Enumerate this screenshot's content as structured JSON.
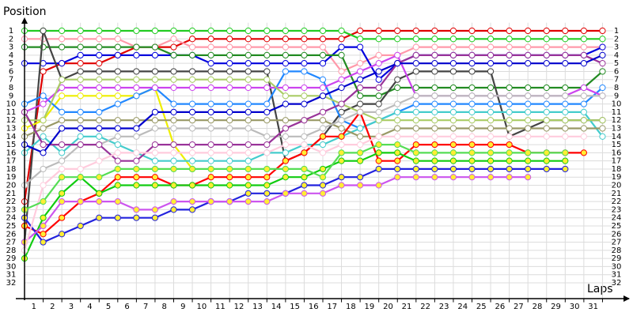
{
  "chart_data": {
    "type": "line",
    "y_label": "Position",
    "x_label": "Laps",
    "x": [
      0,
      1,
      2,
      3,
      4,
      5,
      6,
      7,
      8,
      9,
      10,
      11,
      12,
      13,
      14,
      15,
      16,
      17,
      18,
      19,
      20,
      21,
      22,
      23,
      24,
      25,
      26,
      27,
      28,
      29,
      30,
      31
    ],
    "xlim": [
      0,
      32
    ],
    "ylim": [
      0,
      34
    ],
    "y_inverted": true,
    "grid": true,
    "xticks": [
      1,
      2,
      3,
      4,
      5,
      6,
      7,
      8,
      9,
      10,
      11,
      12,
      13,
      14,
      15,
      16,
      17,
      18,
      19,
      20,
      21,
      22,
      23,
      24,
      25,
      26,
      27,
      28,
      29,
      30,
      31
    ],
    "yticks": [
      1,
      2,
      3,
      4,
      5,
      6,
      7,
      8,
      9,
      10,
      11,
      12,
      13,
      14,
      15,
      16,
      17,
      18,
      19,
      20,
      21,
      22,
      23,
      24,
      25,
      26,
      27,
      28,
      29,
      30,
      31,
      32
    ],
    "series": [
      {
        "color": "#e00000",
        "marker_color": "#ffffff",
        "values": [
          22,
          6,
          5,
          5,
          5,
          4,
          3,
          3,
          3,
          2,
          2,
          2,
          2,
          2,
          2,
          2,
          2,
          2,
          1,
          1,
          1,
          1,
          1,
          1,
          1,
          1,
          1,
          1,
          1,
          1,
          1,
          1
        ]
      },
      {
        "color": "#22cc22",
        "marker_color": "#ffffff",
        "values": [
          1,
          1,
          1,
          1,
          1,
          1,
          1,
          1,
          1,
          1,
          1,
          1,
          1,
          1,
          1,
          1,
          1,
          1,
          2,
          2,
          2,
          2,
          2,
          2,
          2,
          2,
          2,
          2,
          2,
          2,
          2,
          2
        ]
      },
      {
        "color": "#ff99aa",
        "marker_color": "#ffffff",
        "values": [
          2,
          2,
          2,
          2,
          2,
          2,
          3,
          3,
          2,
          3,
          3,
          3,
          3,
          3,
          3,
          3,
          3,
          6,
          5,
          4,
          4,
          3,
          3,
          3,
          3,
          3,
          3,
          3,
          3,
          3,
          3,
          3
        ]
      },
      {
        "color": "#0000dd",
        "marker_color": "#ffffff",
        "values": [
          5,
          5,
          5,
          4,
          4,
          4,
          4,
          4,
          4,
          4,
          5,
          5,
          5,
          5,
          5,
          5,
          5,
          3,
          3,
          7,
          5,
          4,
          4,
          4,
          4,
          4,
          4,
          4,
          4,
          4,
          4,
          3
        ]
      },
      {
        "color": "#228b22",
        "marker_color": "#ffffff",
        "values": [
          3,
          3,
          3,
          3,
          3,
          3,
          3,
          3,
          4,
          4,
          4,
          4,
          4,
          4,
          4,
          4,
          4,
          4,
          9,
          9,
          8,
          8,
          8,
          8,
          8,
          8,
          8,
          8,
          8,
          8,
          8,
          6
        ]
      },
      {
        "color": "#444444",
        "marker_color": "#ffffff",
        "values": [
          27,
          1,
          7,
          6,
          6,
          6,
          6,
          6,
          6,
          6,
          6,
          6,
          6,
          6,
          17,
          16,
          14,
          11,
          10,
          10,
          7,
          6,
          6,
          6,
          6,
          6,
          14,
          13,
          12,
          12,
          12,
          12
        ]
      },
      {
        "color": "#eeee00",
        "marker_color": "#ffffff",
        "values": [
          13,
          12,
          9,
          9,
          9,
          9,
          9,
          8,
          15,
          18,
          null,
          null,
          null,
          null,
          null,
          null,
          null,
          null,
          null,
          null,
          null,
          null,
          null,
          null,
          null,
          null,
          null,
          null,
          null,
          null,
          null,
          null
        ]
      },
      {
        "color": "#2288ff",
        "marker_color": "#ffffff",
        "values": [
          10,
          9,
          11,
          11,
          11,
          10,
          9,
          8,
          10,
          10,
          10,
          10,
          10,
          10,
          6,
          6,
          7,
          12,
          13,
          12,
          11,
          10,
          10,
          10,
          10,
          10,
          10,
          10,
          10,
          10,
          10,
          8
        ]
      },
      {
        "color": "#cc44ee",
        "marker_color": "#ffffff",
        "values": [
          11,
          10,
          8,
          8,
          8,
          8,
          8,
          8,
          8,
          8,
          8,
          8,
          8,
          8,
          8,
          8,
          8,
          7,
          6,
          5,
          4,
          9,
          9,
          9,
          9,
          9,
          9,
          9,
          9,
          9,
          8,
          9
        ]
      },
      {
        "color": "#44cccc",
        "marker_color": "#ffffff",
        "values": [
          16,
          14,
          16,
          14,
          14,
          15,
          16,
          17,
          17,
          17,
          17,
          17,
          17,
          16,
          16,
          15,
          15,
          14,
          13,
          12,
          11,
          11,
          11,
          11,
          11,
          11,
          11,
          11,
          11,
          11,
          11,
          14
        ]
      },
      {
        "color": "#aacc66",
        "marker_color": "#ffffff",
        "values": [
          12,
          12,
          7,
          7,
          7,
          7,
          7,
          7,
          7,
          7,
          7,
          7,
          7,
          7,
          9,
          9,
          9,
          10,
          11,
          12,
          12,
          12,
          12,
          12,
          12,
          12,
          12,
          12,
          12,
          12,
          12,
          12
        ]
      },
      {
        "color": "#999966",
        "marker_color": "#ffffff",
        "values": [
          14,
          13,
          12,
          12,
          12,
          12,
          12,
          12,
          12,
          12,
          12,
          12,
          12,
          12,
          12,
          12,
          12,
          13,
          14,
          14,
          13,
          13,
          13,
          13,
          13,
          13,
          13,
          13,
          13,
          13,
          13,
          13
        ]
      },
      {
        "color": "#ff0000",
        "marker_color": "#ffee33",
        "values": [
          25,
          26,
          24,
          22,
          21,
          19,
          19,
          19,
          20,
          20,
          19,
          19,
          19,
          19,
          17,
          16,
          14,
          14,
          11,
          17,
          17,
          15,
          15,
          15,
          15,
          15,
          15,
          16,
          16,
          16,
          16,
          null
        ]
      },
      {
        "color": "#11cc11",
        "marker_color": "#ffee33",
        "values": [
          29,
          24,
          21,
          19,
          21,
          20,
          20,
          20,
          20,
          20,
          20,
          20,
          20,
          20,
          19,
          19,
          18,
          17,
          17,
          16,
          16,
          17,
          17,
          17,
          17,
          17,
          17,
          17,
          17,
          17,
          null,
          null
        ]
      },
      {
        "color": "#2222dd",
        "marker_color": "#ffee33",
        "values": [
          24,
          27,
          26,
          25,
          24,
          24,
          24,
          24,
          23,
          23,
          22,
          22,
          21,
          21,
          21,
          20,
          20,
          19,
          19,
          18,
          18,
          18,
          18,
          18,
          18,
          18,
          18,
          18,
          18,
          18,
          null,
          null
        ]
      },
      {
        "color": "#cc55ee",
        "marker_color": "#ffee33",
        "values": [
          27,
          25,
          22,
          22,
          22,
          22,
          23,
          23,
          22,
          22,
          22,
          22,
          22,
          22,
          21,
          21,
          21,
          20,
          20,
          20,
          19,
          19,
          19,
          19,
          19,
          19,
          19,
          19,
          null,
          null,
          null,
          null
        ]
      },
      {
        "color": "#bbbbbb",
        "marker_color": "#ffffff",
        "values": [
          20,
          18,
          17,
          15,
          15,
          14,
          14,
          13,
          13,
          13,
          13,
          13,
          13,
          14,
          14,
          14,
          13,
          12,
          11,
          11,
          10,
          9,
          9,
          9,
          9,
          9,
          9,
          9,
          9,
          9,
          9,
          9
        ]
      },
      {
        "color": "#993399",
        "marker_color": "#ffffff",
        "values": [
          11,
          15,
          15,
          15,
          15,
          17,
          17,
          15,
          15,
          15,
          15,
          15,
          15,
          15,
          13,
          12,
          11,
          10,
          8,
          8,
          5,
          4,
          4,
          4,
          4,
          4,
          4,
          4,
          4,
          4,
          4,
          5
        ]
      },
      {
        "color": "#ffccdd",
        "marker_color": "#ffffff",
        "values": [
          28,
          20,
          18,
          18,
          17,
          16,
          16,
          16,
          16,
          16,
          16,
          16,
          16,
          16,
          15,
          15,
          16,
          15,
          15,
          14,
          14,
          14,
          14,
          14,
          14,
          14,
          14,
          14,
          14,
          14,
          14,
          null
        ]
      },
      {
        "color": "#0000cc",
        "marker_color": "#ffffff",
        "values": [
          15,
          16,
          13,
          13,
          13,
          13,
          13,
          11,
          11,
          11,
          11,
          11,
          11,
          11,
          10,
          10,
          9,
          8,
          7,
          6,
          5,
          5,
          5,
          5,
          5,
          5,
          5,
          5,
          5,
          5,
          5,
          4
        ]
      },
      {
        "color": "#55dd55",
        "marker_color": "#ffee33",
        "values": [
          23,
          22,
          19,
          19,
          19,
          18,
          18,
          18,
          18,
          18,
          18,
          18,
          18,
          18,
          18,
          18,
          19,
          16,
          16,
          15,
          15,
          16,
          16,
          16,
          16,
          16,
          16,
          16,
          16,
          16,
          null,
          null
        ]
      }
    ]
  }
}
